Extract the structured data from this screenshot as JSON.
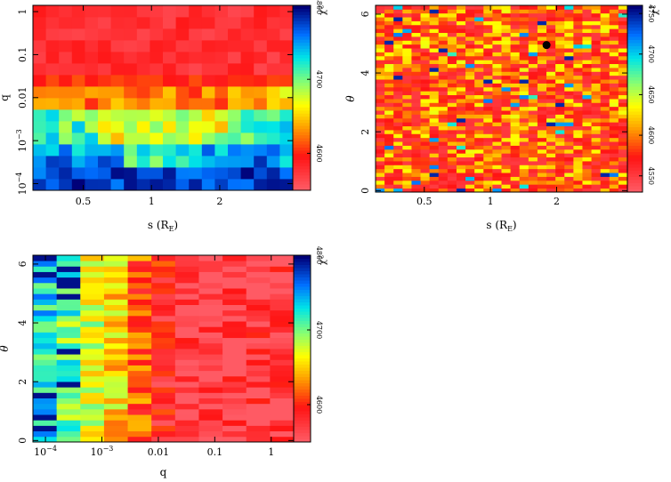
{
  "chart_data": [
    {
      "id": "panel-q-vs-s",
      "type": "heatmap",
      "xlabel": "s (R",
      "xlabel_sub": "E",
      "xlabel_close": ")",
      "ylabel": "q",
      "x_scale": "log",
      "y_scale": "log",
      "xlim": [
        0.3,
        4.2
      ],
      "ylim": [
        7e-05,
        1.4
      ],
      "xticks": [
        {
          "v": 0.5,
          "t": "0.5"
        },
        {
          "v": 1,
          "t": "1"
        },
        {
          "v": 2,
          "t": "2"
        }
      ],
      "yticks": [
        {
          "v": 0.0001,
          "t": "10",
          "sup": "−4"
        },
        {
          "v": 0.001,
          "t": "10",
          "sup": "−3"
        },
        {
          "v": 0.01,
          "t": "0.01"
        },
        {
          "v": 0.1,
          "t": "0.1"
        },
        {
          "v": 1,
          "t": "1"
        }
      ],
      "grid_cols": 20,
      "grid_rows": 16,
      "colorbar": {
        "min": 4550,
        "max": 4800,
        "ticks": [
          {
            "v": 4600,
            "t": "4600"
          },
          {
            "v": 4700,
            "t": "4700"
          },
          {
            "v": 4800,
            "t": "4800"
          }
        ],
        "label": "χ",
        "label_sup": "2"
      }
    },
    {
      "id": "panel-theta-vs-s",
      "type": "heatmap",
      "xlabel": "s (R",
      "xlabel_sub": "E",
      "xlabel_close": ")",
      "ylabel": "θ",
      "x_scale": "log",
      "y_scale": "linear",
      "xlim": [
        0.3,
        4.2
      ],
      "ylim": [
        -0.05,
        6.3
      ],
      "xticks": [
        {
          "v": 0.5,
          "t": "0.5"
        },
        {
          "v": 1,
          "t": "1"
        },
        {
          "v": 2,
          "t": "2"
        }
      ],
      "yticks": [
        {
          "v": 0,
          "t": "0"
        },
        {
          "v": 2,
          "t": "2"
        },
        {
          "v": 4,
          "t": "4"
        },
        {
          "v": 6,
          "t": "6"
        }
      ],
      "grid_cols": 28,
      "grid_rows": 48,
      "marker": {
        "x": 1.8,
        "y": 4.95
      },
      "colorbar": {
        "min": 4530,
        "max": 4760,
        "ticks": [
          {
            "v": 4550,
            "t": "4550"
          },
          {
            "v": 4600,
            "t": "4600"
          },
          {
            "v": 4650,
            "t": "4650"
          },
          {
            "v": 4700,
            "t": "4700"
          },
          {
            "v": 4750,
            "t": "4750"
          }
        ],
        "label": "χ",
        "label_sup": "2"
      }
    },
    {
      "id": "panel-theta-vs-q",
      "type": "heatmap",
      "xlabel": "q",
      "ylabel": "θ",
      "x_scale": "log",
      "y_scale": "linear",
      "xlim": [
        6e-05,
        2.5
      ],
      "ylim": [
        -0.05,
        6.3
      ],
      "xticks": [
        {
          "v": 0.0001,
          "t": "10",
          "sup": "−4"
        },
        {
          "v": 0.001,
          "t": "10",
          "sup": "−3"
        },
        {
          "v": 0.01,
          "t": "0.01"
        },
        {
          "v": 0.1,
          "t": "0.1"
        },
        {
          "v": 1,
          "t": "1"
        }
      ],
      "yticks": [
        {
          "v": 0,
          "t": "0"
        },
        {
          "v": 2,
          "t": "2"
        },
        {
          "v": 4,
          "t": "4"
        },
        {
          "v": 6,
          "t": "6"
        }
      ],
      "grid_cols": 11,
      "grid_rows": 34,
      "colorbar": {
        "min": 4550,
        "max": 4800,
        "ticks": [
          {
            "v": 4600,
            "t": "4600"
          },
          {
            "v": 4700,
            "t": "4700"
          },
          {
            "v": 4800,
            "t": "4800"
          }
        ],
        "label": "χ",
        "label_sup": "2"
      }
    }
  ]
}
